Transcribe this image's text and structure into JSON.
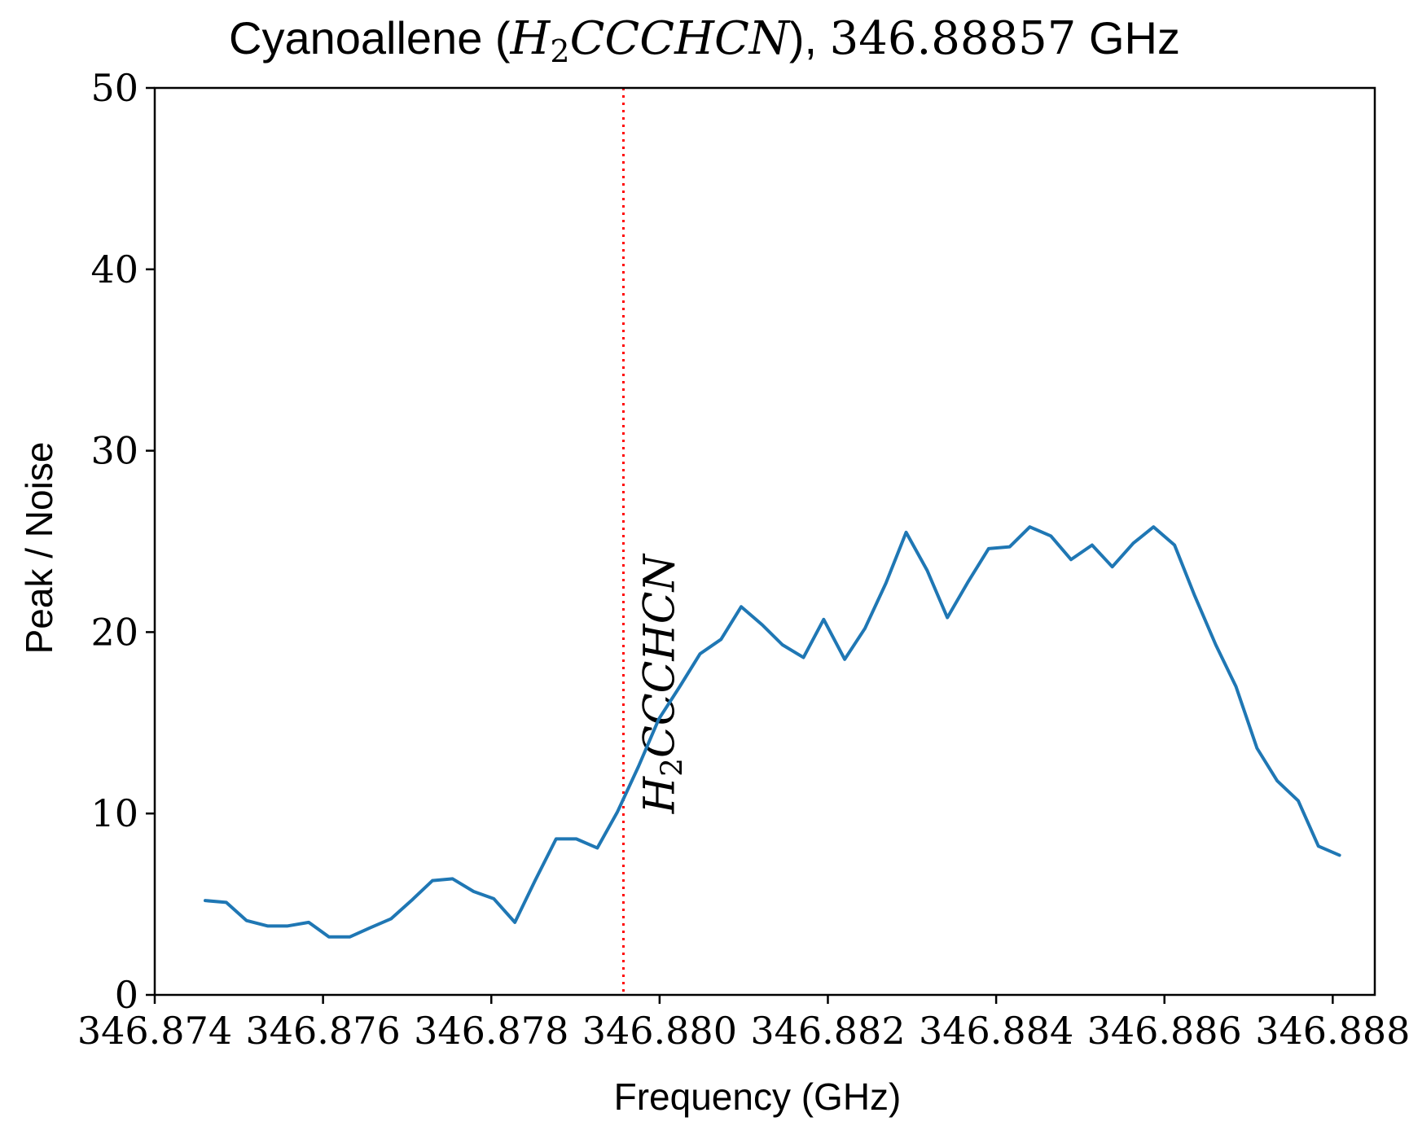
{
  "chart_data": {
    "type": "line",
    "title": {
      "prefix": "Cyanoallene (",
      "formula_main": "H",
      "formula_sub": "2",
      "formula_rest": "CCCHCN",
      "middle": "), ",
      "freq": "346.88857",
      "suffix": " GHz"
    },
    "xlabel": "Frequency (GHz)",
    "ylabel": "Peak / Noise",
    "xlim": [
      346.874,
      346.8885
    ],
    "ylim": [
      0,
      50
    ],
    "xticks": [
      346.874,
      346.876,
      346.878,
      346.88,
      346.882,
      346.884,
      346.886,
      346.888
    ],
    "xtick_labels": [
      "346.874",
      "346.876",
      "346.878",
      "346.880",
      "346.882",
      "346.884",
      "346.886",
      "346.888"
    ],
    "yticks": [
      0,
      10,
      20,
      30,
      40,
      50
    ],
    "ytick_labels": [
      "0",
      "10",
      "20",
      "30",
      "40",
      "50"
    ],
    "grid": false,
    "series": [
      {
        "color": "#1f77b4",
        "x": [
          346.8746,
          346.87485,
          346.87509,
          346.87534,
          346.87558,
          346.87583,
          346.87607,
          346.87632,
          346.87656,
          346.87681,
          346.87705,
          346.8773,
          346.87754,
          346.87779,
          346.87803,
          346.87828,
          346.87852,
          346.87877,
          346.87901,
          346.87926,
          346.8795,
          346.87975,
          346.87999,
          346.88024,
          346.88048,
          346.88073,
          346.88097,
          346.88122,
          346.88146,
          346.88171,
          346.88195,
          346.8822,
          346.88244,
          346.88269,
          346.88293,
          346.88318,
          346.88342,
          346.88367,
          346.88391,
          346.88416,
          346.8844,
          346.88465,
          346.88489,
          346.88514,
          346.88538,
          346.88563,
          346.88587,
          346.88612,
          346.88636,
          346.88661,
          346.88685,
          346.8871,
          346.88734,
          346.88759,
          346.88783,
          346.88808
        ],
        "y": [
          5.2,
          5.1,
          4.1,
          3.8,
          3.8,
          4.0,
          3.2,
          3.2,
          3.7,
          4.2,
          5.2,
          6.3,
          6.4,
          5.7,
          5.3,
          4.0,
          6.3,
          8.6,
          8.6,
          8.1,
          10.1,
          12.6,
          15.2,
          17.0,
          18.8,
          19.6,
          21.4,
          20.4,
          19.3,
          18.6,
          20.7,
          18.5,
          20.2,
          22.7,
          25.5,
          23.4,
          20.8,
          22.8,
          24.6,
          24.7,
          25.8,
          25.3,
          24.0,
          24.8,
          23.6,
          24.9,
          25.8,
          24.8,
          22.0,
          19.3,
          17.0,
          13.6,
          11.8,
          10.7,
          8.2,
          7.7
        ]
      }
    ],
    "annotation": {
      "line_x": 346.87957,
      "line_color": "#ff0000",
      "line_style": "dotted",
      "label_main": "H",
      "label_sub": "2",
      "label_rest": "CCCHCN",
      "label_rotation": "vertical"
    }
  }
}
